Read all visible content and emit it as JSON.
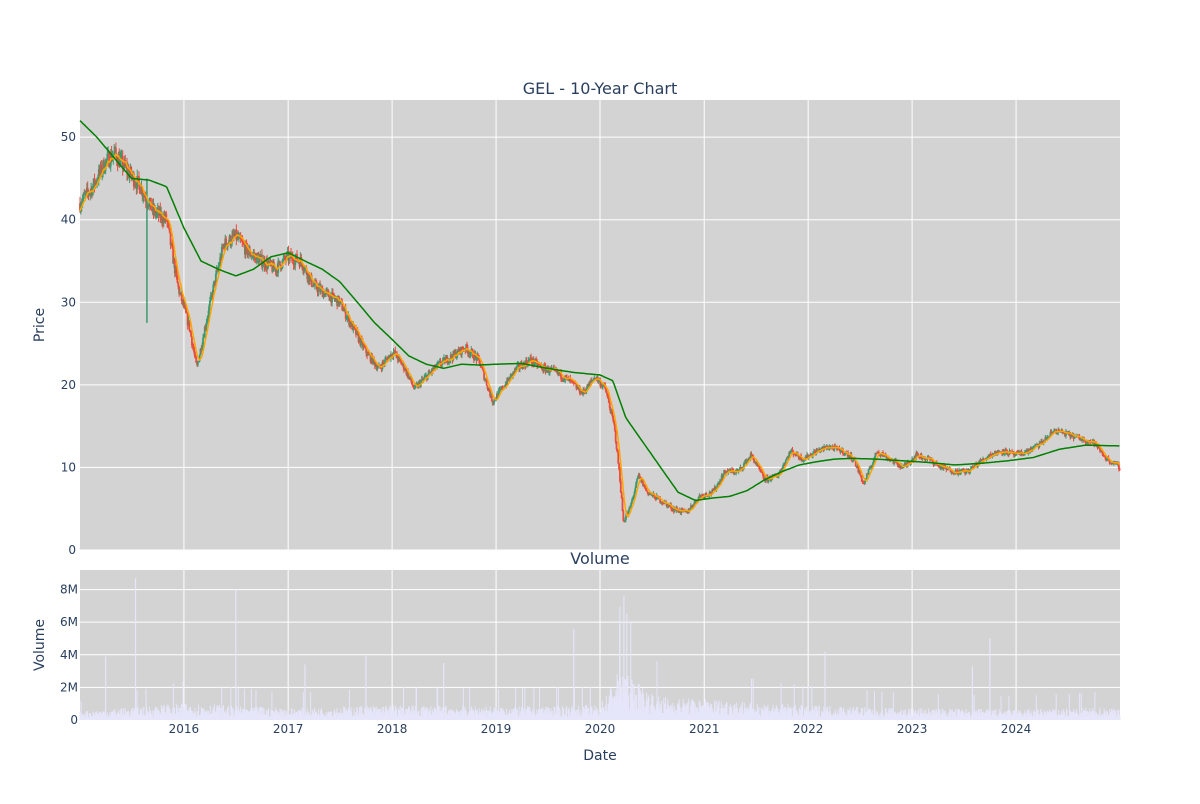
{
  "chart_data": [
    {
      "type": "candlestick",
      "title": "GEL - 10-Year Chart",
      "ylabel": "Price",
      "ylim": [
        0,
        54.5
      ],
      "yticks": [
        0,
        10,
        20,
        30,
        40,
        50
      ],
      "xlim": [
        "2015-01-01",
        "2024-12-31"
      ],
      "grid": true,
      "colors": {
        "increasing": "#3d9970",
        "decreasing": "#e74c3c",
        "ma_short": "#ffa500",
        "ma_long": "#008000",
        "plot_bg": "#d3d3d3"
      },
      "price_path": [
        [
          "2015-01-01",
          42
        ],
        [
          "2015-02-15",
          44
        ],
        [
          "2015-04-01",
          47
        ],
        [
          "2015-05-01",
          48
        ],
        [
          "2015-06-15",
          46
        ],
        [
          "2015-08-01",
          44
        ],
        [
          "2015-09-15",
          41
        ],
        [
          "2015-11-01",
          40
        ],
        [
          "2015-12-10",
          32
        ],
        [
          "2016-01-20",
          27
        ],
        [
          "2016-02-15",
          22
        ],
        [
          "2016-03-15",
          27
        ],
        [
          "2016-04-15",
          32
        ],
        [
          "2016-05-20",
          37
        ],
        [
          "2016-07-01",
          38
        ],
        [
          "2016-08-15",
          36
        ],
        [
          "2016-10-01",
          35
        ],
        [
          "2016-11-15",
          34
        ],
        [
          "2017-01-01",
          35.5
        ],
        [
          "2017-02-15",
          35
        ],
        [
          "2017-04-01",
          32
        ],
        [
          "2017-05-15",
          31
        ],
        [
          "2017-07-01",
          30
        ],
        [
          "2017-08-15",
          27
        ],
        [
          "2017-10-01",
          24
        ],
        [
          "2017-11-15",
          22
        ],
        [
          "2018-01-05",
          24
        ],
        [
          "2018-02-15",
          22
        ],
        [
          "2018-03-20",
          19.5
        ],
        [
          "2018-05-01",
          21
        ],
        [
          "2018-06-15",
          22.5
        ],
        [
          "2018-08-01",
          23.5
        ],
        [
          "2018-09-15",
          24.5
        ],
        [
          "2018-11-01",
          23
        ],
        [
          "2018-12-20",
          18
        ],
        [
          "2019-02-01",
          20
        ],
        [
          "2019-03-15",
          22
        ],
        [
          "2019-05-01",
          23
        ],
        [
          "2019-06-15",
          22
        ],
        [
          "2019-08-01",
          21.5
        ],
        [
          "2019-09-15",
          20.5
        ],
        [
          "2019-11-01",
          19
        ],
        [
          "2019-12-15",
          21
        ],
        [
          "2020-01-20",
          19.5
        ],
        [
          "2020-02-20",
          15
        ],
        [
          "2020-03-10",
          9
        ],
        [
          "2020-03-23",
          3.5
        ],
        [
          "2020-04-15",
          5
        ],
        [
          "2020-05-15",
          9
        ],
        [
          "2020-06-15",
          7
        ],
        [
          "2020-08-01",
          6
        ],
        [
          "2020-09-15",
          5
        ],
        [
          "2020-10-30",
          4.5
        ],
        [
          "2020-12-15",
          6.5
        ],
        [
          "2021-02-01",
          7
        ],
        [
          "2021-03-15",
          9.5
        ],
        [
          "2021-05-01",
          9.5
        ],
        [
          "2021-06-15",
          11.5
        ],
        [
          "2021-08-01",
          8.5
        ],
        [
          "2021-09-15",
          9
        ],
        [
          "2021-11-01",
          12
        ],
        [
          "2021-12-15",
          11
        ],
        [
          "2022-02-01",
          12
        ],
        [
          "2022-03-15",
          12.5
        ],
        [
          "2022-05-01",
          12
        ],
        [
          "2022-06-10",
          11
        ],
        [
          "2022-07-15",
          8
        ],
        [
          "2022-09-01",
          12
        ],
        [
          "2022-10-15",
          11
        ],
        [
          "2022-12-01",
          10
        ],
        [
          "2023-01-15",
          11.5
        ],
        [
          "2023-03-01",
          11
        ],
        [
          "2023-04-15",
          10
        ],
        [
          "2023-06-01",
          9.5
        ],
        [
          "2023-07-15",
          9.5
        ],
        [
          "2023-08-20",
          10.5
        ],
        [
          "2023-10-01",
          11.5
        ],
        [
          "2023-11-15",
          12
        ],
        [
          "2024-01-01",
          11.5
        ],
        [
          "2024-02-15",
          12
        ],
        [
          "2024-04-01",
          13
        ],
        [
          "2024-05-15",
          14.5
        ],
        [
          "2024-07-01",
          14
        ],
        [
          "2024-08-15",
          13.5
        ],
        [
          "2024-10-01",
          13
        ],
        [
          "2024-11-15",
          11
        ],
        [
          "2024-12-31",
          10
        ]
      ],
      "ma_long": [
        [
          "2015-01-01",
          52
        ],
        [
          "2015-03-01",
          50
        ],
        [
          "2015-05-01",
          47.5
        ],
        [
          "2015-07-01",
          45
        ],
        [
          "2015-09-01",
          44.8
        ],
        [
          "2015-11-01",
          44
        ],
        [
          "2016-01-01",
          39
        ],
        [
          "2016-03-01",
          35
        ],
        [
          "2016-05-01",
          34
        ],
        [
          "2016-07-01",
          33.2
        ],
        [
          "2016-09-01",
          34
        ],
        [
          "2016-11-01",
          35.5
        ],
        [
          "2017-01-01",
          36
        ],
        [
          "2017-03-01",
          35
        ],
        [
          "2017-05-01",
          34
        ],
        [
          "2017-07-01",
          32.5
        ],
        [
          "2017-09-01",
          30
        ],
        [
          "2017-11-01",
          27.5
        ],
        [
          "2018-01-01",
          25.5
        ],
        [
          "2018-03-01",
          23.5
        ],
        [
          "2018-05-01",
          22.5
        ],
        [
          "2018-07-01",
          22
        ],
        [
          "2018-09-01",
          22.5
        ],
        [
          "2018-11-01",
          22.4
        ],
        [
          "2019-01-01",
          22.5
        ],
        [
          "2019-04-01",
          22.6
        ],
        [
          "2019-07-01",
          22
        ],
        [
          "2019-10-01",
          21.5
        ],
        [
          "2020-01-01",
          21.2
        ],
        [
          "2020-02-15",
          20.5
        ],
        [
          "2020-04-01",
          16
        ],
        [
          "2020-06-01",
          13
        ],
        [
          "2020-08-01",
          10
        ],
        [
          "2020-10-01",
          7
        ],
        [
          "2020-12-01",
          6
        ],
        [
          "2021-02-01",
          6.3
        ],
        [
          "2021-04-01",
          6.5
        ],
        [
          "2021-06-01",
          7.2
        ],
        [
          "2021-08-01",
          8.5
        ],
        [
          "2021-10-01",
          9.5
        ],
        [
          "2021-12-01",
          10.3
        ],
        [
          "2022-02-01",
          10.7
        ],
        [
          "2022-04-01",
          11
        ],
        [
          "2022-06-01",
          11.1
        ],
        [
          "2022-09-01",
          11
        ],
        [
          "2022-12-01",
          10.8
        ],
        [
          "2023-03-01",
          10.6
        ],
        [
          "2023-06-01",
          10.3
        ],
        [
          "2023-09-01",
          10.5
        ],
        [
          "2023-12-01",
          10.8
        ],
        [
          "2024-03-01",
          11.2
        ],
        [
          "2024-06-01",
          12.2
        ],
        [
          "2024-09-01",
          12.7
        ],
        [
          "2024-12-31",
          12.6
        ]
      ]
    },
    {
      "type": "bar",
      "title": "Volume",
      "xlabel": "Date",
      "ylabel": "Volume",
      "ylim": [
        0,
        9200000
      ],
      "yticks": [
        0,
        2000000,
        4000000,
        6000000,
        8000000
      ],
      "ytick_labels": [
        "0",
        "2M",
        "4M",
        "6M",
        "8M"
      ],
      "xticks": [
        "2016-01-01",
        "2017-01-01",
        "2018-01-01",
        "2019-01-01",
        "2020-01-01",
        "2021-01-01",
        "2022-01-01",
        "2023-01-01",
        "2024-01-01"
      ],
      "xtick_labels": [
        "2016",
        "2017",
        "2018",
        "2019",
        "2020",
        "2021",
        "2022",
        "2023",
        "2024"
      ],
      "grid": true,
      "colors": {
        "bar": "#e6e6fa",
        "plot_bg": "#d3d3d3"
      },
      "baseline_volume": [
        [
          "2015-01-01",
          400000
        ],
        [
          "2016-01-01",
          800000
        ],
        [
          "2017-01-01",
          550000
        ],
        [
          "2018-01-01",
          700000
        ],
        [
          "2019-01-01",
          650000
        ],
        [
          "2020-01-01",
          700000
        ],
        [
          "2020-03-15",
          2500000
        ],
        [
          "2020-06-01",
          1500000
        ],
        [
          "2020-09-01",
          1000000
        ],
        [
          "2021-01-01",
          1000000
        ],
        [
          "2022-01-01",
          700000
        ],
        [
          "2023-01-01",
          550000
        ],
        [
          "2024-01-01",
          500000
        ],
        [
          "2024-12-31",
          600000
        ]
      ],
      "spikes": [
        [
          "2015-04-01",
          3900000
        ],
        [
          "2015-07-15",
          8700000
        ],
        [
          "2016-07-01",
          8000000
        ],
        [
          "2017-03-01",
          3400000
        ],
        [
          "2017-10-01",
          3900000
        ],
        [
          "2018-07-01",
          3500000
        ],
        [
          "2019-10-01",
          5600000
        ],
        [
          "2020-03-10",
          6100000
        ],
        [
          "2020-03-25",
          7600000
        ],
        [
          "2022-03-01",
          4200000
        ],
        [
          "2023-08-01",
          3300000
        ],
        [
          "2023-10-01",
          5000000
        ]
      ]
    }
  ]
}
